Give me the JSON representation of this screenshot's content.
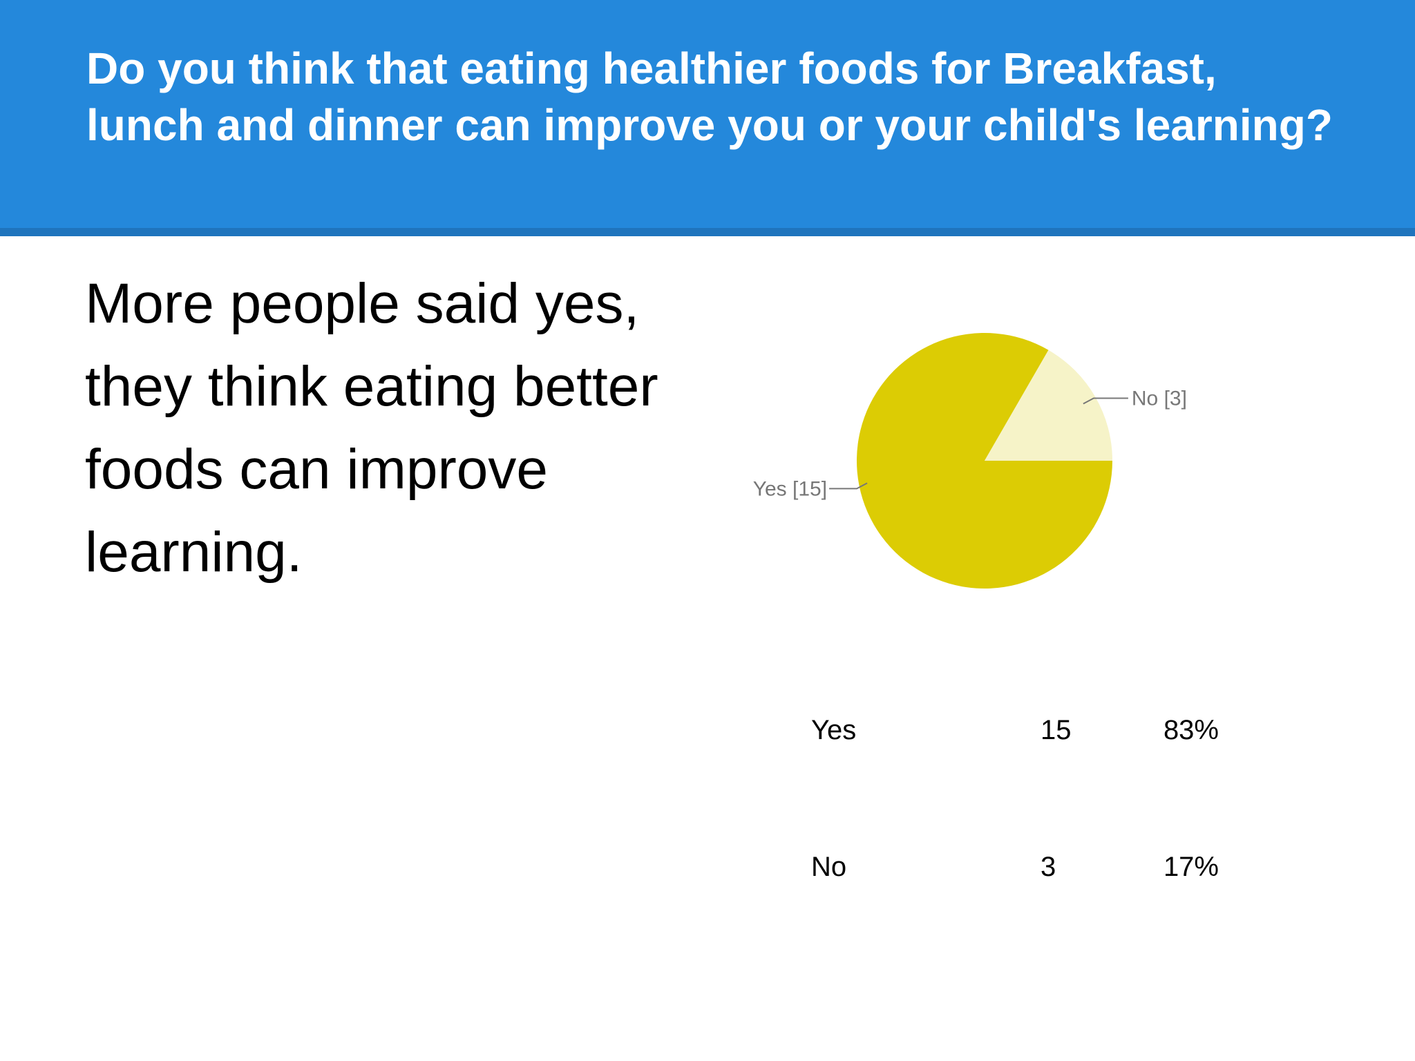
{
  "slide": {
    "title": "Do you think that eating healthier foods for Breakfast, lunch and dinner can improve you or your child's learning?",
    "body": "More people said yes, they think eating better foods can improve learning.",
    "colors": {
      "header_bg": "#2488db",
      "header_border": "#1f74bd",
      "title_text": "#ffffff",
      "yes_slice": "#dccc04",
      "no_slice": "#f6f3c8",
      "slice_label": "#777777"
    }
  },
  "chart_data": {
    "type": "pie",
    "title": "",
    "slices": [
      {
        "label": "Yes [15]",
        "category": "Yes",
        "value": 15,
        "percent": "83%",
        "color": "#dccc04"
      },
      {
        "label": "No [3]",
        "category": "No",
        "value": 3,
        "percent": "17%",
        "color": "#f6f3c8"
      }
    ],
    "table": [
      {
        "category": "Yes",
        "count": "15",
        "percent": "83%"
      },
      {
        "category": "No",
        "count": "3",
        "percent": "17%"
      }
    ]
  }
}
